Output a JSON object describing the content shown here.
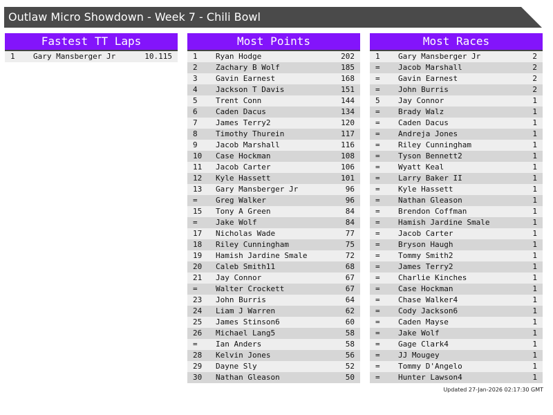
{
  "title": "Outlaw Micro Showdown - Week 7 - Chili Bowl",
  "panels": [
    {
      "title": "Fastest TT Laps",
      "rows": [
        [
          "1",
          "Gary Mansberger Jr",
          "10.115"
        ]
      ]
    },
    {
      "title": "Most Points",
      "rows": [
        [
          "1",
          "Ryan Hodge",
          "202"
        ],
        [
          "2",
          "Zachary B Wolf",
          "185"
        ],
        [
          "3",
          "Gavin Earnest",
          "168"
        ],
        [
          "4",
          "Jackson T Davis",
          "151"
        ],
        [
          "5",
          "Trent Conn",
          "144"
        ],
        [
          "6",
          "Caden Dacus",
          "134"
        ],
        [
          "7",
          "James Terry2",
          "120"
        ],
        [
          "8",
          "Timothy Thurein",
          "117"
        ],
        [
          "9",
          "Jacob Marshall",
          "116"
        ],
        [
          "10",
          "Case Hockman",
          "108"
        ],
        [
          "11",
          "Jacob Carter",
          "106"
        ],
        [
          "12",
          "Kyle Hassett",
          "101"
        ],
        [
          "13",
          "Gary Mansberger Jr",
          "96"
        ],
        [
          "=",
          "Greg Walker",
          "96"
        ],
        [
          "15",
          "Tony A Green",
          "84"
        ],
        [
          "=",
          "Jake Wolf",
          "84"
        ],
        [
          "17",
          "Nicholas Wade",
          "77"
        ],
        [
          "18",
          "Riley Cunningham",
          "75"
        ],
        [
          "19",
          "Hamish Jardine Smale",
          "72"
        ],
        [
          "20",
          "Caleb Smith11",
          "68"
        ],
        [
          "21",
          "Jay Connor",
          "67"
        ],
        [
          "=",
          "Walter Crockett",
          "67"
        ],
        [
          "23",
          "John Burris",
          "64"
        ],
        [
          "24",
          "Liam J Warren",
          "62"
        ],
        [
          "25",
          "James Stinson6",
          "60"
        ],
        [
          "26",
          "Michael Lang5",
          "58"
        ],
        [
          "=",
          "Ian Anders",
          "58"
        ],
        [
          "28",
          "Kelvin Jones",
          "56"
        ],
        [
          "29",
          "Dayne Sly",
          "52"
        ],
        [
          "30",
          "Nathan Gleason",
          "50"
        ]
      ]
    },
    {
      "title": "Most Races",
      "rows": [
        [
          "1",
          "Gary Mansberger Jr",
          "2"
        ],
        [
          "=",
          "Jacob Marshall",
          "2"
        ],
        [
          "=",
          "Gavin Earnest",
          "2"
        ],
        [
          "=",
          "John Burris",
          "2"
        ],
        [
          "5",
          "Jay Connor",
          "1"
        ],
        [
          "=",
          "Brady Walz",
          "1"
        ],
        [
          "=",
          "Caden Dacus",
          "1"
        ],
        [
          "=",
          "Andreja Jones",
          "1"
        ],
        [
          "=",
          "Riley Cunningham",
          "1"
        ],
        [
          "=",
          "Tyson Bennett2",
          "1"
        ],
        [
          "=",
          "Wyatt Keal",
          "1"
        ],
        [
          "=",
          "Larry Baker II",
          "1"
        ],
        [
          "=",
          "Kyle Hassett",
          "1"
        ],
        [
          "=",
          "Nathan Gleason",
          "1"
        ],
        [
          "=",
          "Brendon Coffman",
          "1"
        ],
        [
          "=",
          "Hamish Jardine Smale",
          "1"
        ],
        [
          "=",
          "Jacob Carter",
          "1"
        ],
        [
          "=",
          "Bryson Haugh",
          "1"
        ],
        [
          "=",
          "Tommy Smith2",
          "1"
        ],
        [
          "=",
          "James Terry2",
          "1"
        ],
        [
          "=",
          "Charlie Kinches",
          "1"
        ],
        [
          "=",
          "Case Hockman",
          "1"
        ],
        [
          "=",
          "Chase Walker4",
          "1"
        ],
        [
          "=",
          "Cody Jackson6",
          "1"
        ],
        [
          "=",
          "Caden Mayse",
          "1"
        ],
        [
          "=",
          "Jake Wolf",
          "1"
        ],
        [
          "=",
          "Gage Clark4",
          "1"
        ],
        [
          "=",
          "JJ Mougey",
          "1"
        ],
        [
          "=",
          "Tommy D'Angelo",
          "1"
        ],
        [
          "=",
          "Hunter Lawson4",
          "1"
        ]
      ]
    }
  ],
  "updated": "Updated 27-Jan-2026 02:17:30 GMT",
  "colors": {
    "header": "#8314fb",
    "title_bar": "#4a4a4a"
  }
}
